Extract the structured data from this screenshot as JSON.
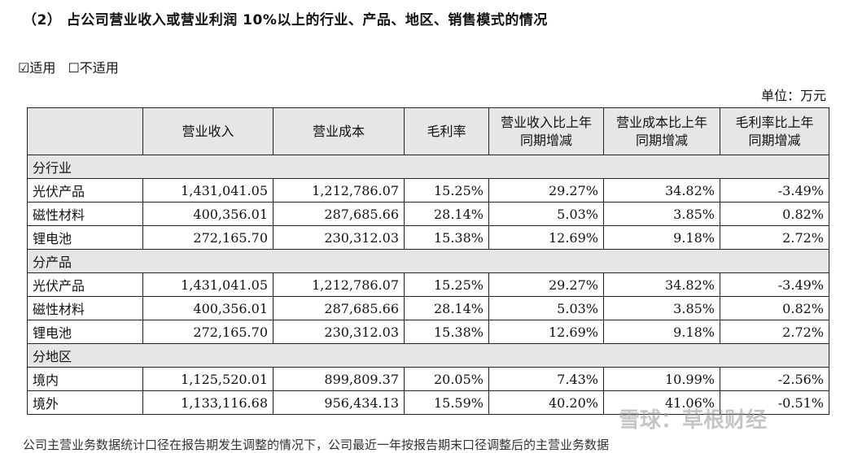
{
  "heading": "（2） 占公司营业收入或营业利润 10%以上的行业、产品、地区、销售模式的情况",
  "options": {
    "applicable": "☑适用",
    "not_applicable": "☐不适用"
  },
  "unit": "单位：万元",
  "table": {
    "headers": [
      "",
      "营业收入",
      "营业成本",
      "毛利率",
      "营业收入比上年同期增减",
      "营业成本比上年同期增减",
      "毛利率比上年同期增减"
    ],
    "sections": [
      {
        "title": "分行业",
        "rows": [
          [
            "光伏产品",
            "1,431,041.05",
            "1,212,786.07",
            "15.25%",
            "29.27%",
            "34.82%",
            "-3.49%"
          ],
          [
            "磁性材料",
            "400,356.01",
            "287,685.66",
            "28.14%",
            "5.03%",
            "3.85%",
            "0.82%"
          ],
          [
            "锂电池",
            "272,165.70",
            "230,312.03",
            "15.38%",
            "12.69%",
            "9.18%",
            "2.72%"
          ]
        ]
      },
      {
        "title": "分产品",
        "rows": [
          [
            "光伏产品",
            "1,431,041.05",
            "1,212,786.07",
            "15.25%",
            "29.27%",
            "34.82%",
            "-3.49%"
          ],
          [
            "磁性材料",
            "400,356.01",
            "287,685.66",
            "28.14%",
            "5.03%",
            "3.85%",
            "0.82%"
          ],
          [
            "锂电池",
            "272,165.70",
            "230,312.03",
            "15.38%",
            "12.69%",
            "9.18%",
            "2.72%"
          ]
        ]
      },
      {
        "title": "分地区",
        "rows": [
          [
            "境内",
            "1,125,520.01",
            "899,809.37",
            "20.05%",
            "7.43%",
            "10.99%",
            "-2.56%"
          ],
          [
            "境外",
            "1,133,116.68",
            "956,434.13",
            "15.59%",
            "40.20%",
            "41.06%",
            "-0.51%"
          ]
        ]
      }
    ]
  },
  "watermark": "雪球：草根财经",
  "footer": "公司主营业务数据统计口径在报告期发生调整的情况下，公司最近一年按报告期末口径调整后的主营业务数据"
}
